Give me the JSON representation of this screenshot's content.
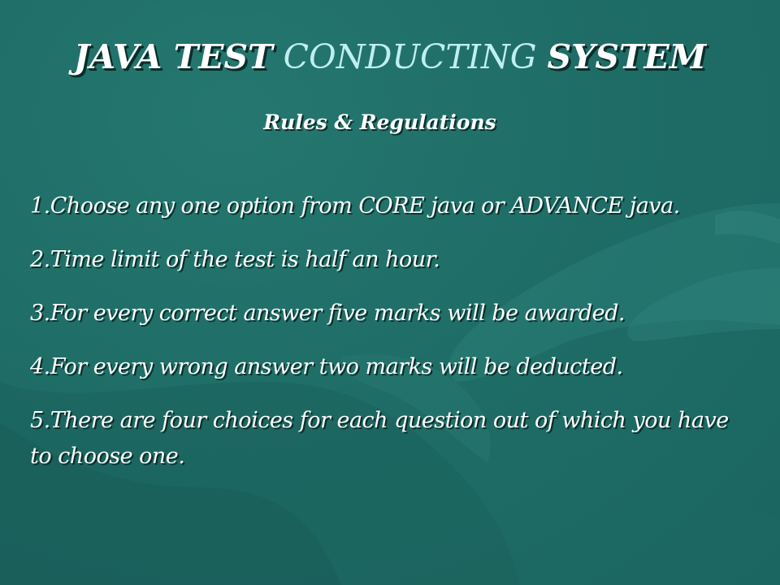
{
  "slide": {
    "title": {
      "part1": "JAVA TEST",
      "part2": "CONDUCTING",
      "part3": "SYSTEM"
    },
    "subtitle": "Rules & Regulations",
    "rules": [
      "1.Choose any one option from CORE java or ADVANCE java.",
      "2.Time limit of the test is half an hour.",
      "3.For every correct answer five marks will be awarded.",
      "4.For every wrong answer two marks will be deducted.",
      "5.There are four choices for each question out of which you have to choose one."
    ]
  },
  "colors": {
    "background": "#1f6e68",
    "text": "#ffffff",
    "title_accent": "#bfeff0",
    "shadow": "#0a2e2b"
  }
}
